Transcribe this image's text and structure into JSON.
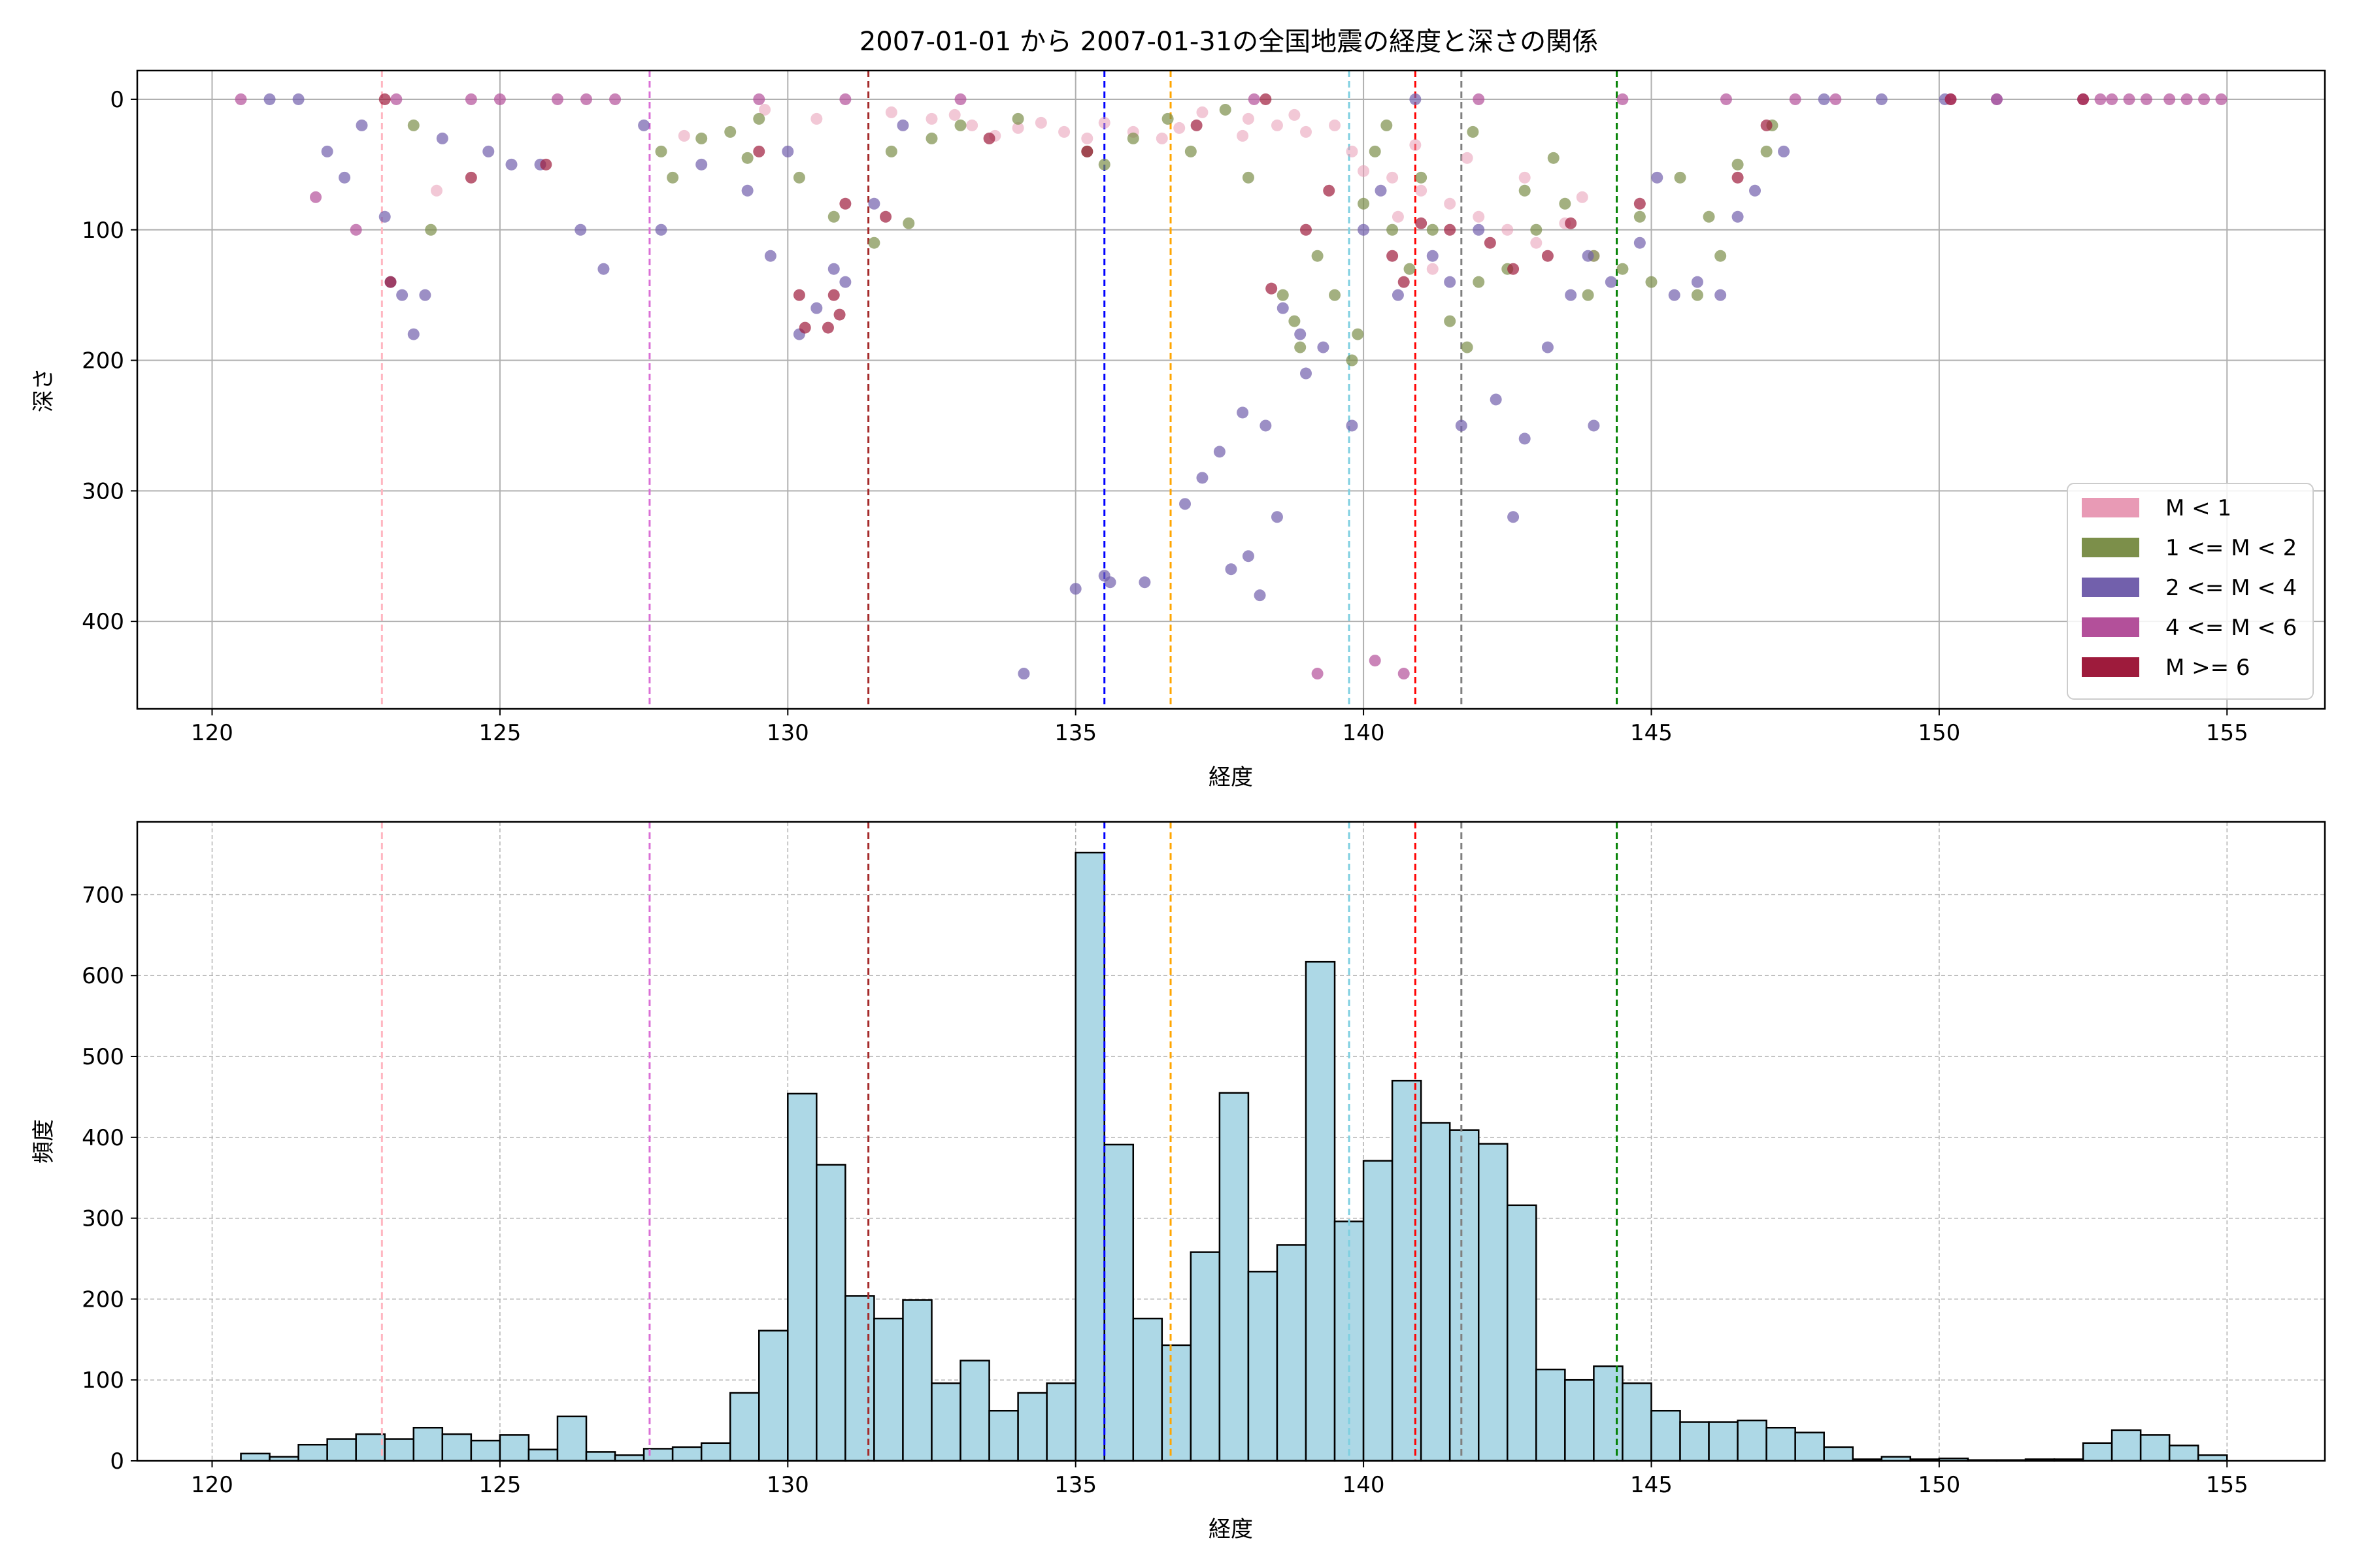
{
  "chart_data": [
    {
      "type": "scatter",
      "title": "2007-01-01 から 2007-01-31の全国地震の経度と深さの関係",
      "xlabel": "経度",
      "ylabel": "深さ",
      "xlim": [
        118.7,
        156.7
      ],
      "ylim": [
        467,
        -22
      ],
      "y_inverted": true,
      "xticks": [
        120,
        125,
        130,
        135,
        140,
        145,
        150,
        155
      ],
      "xtick_labels": [
        "120",
        "125",
        "130",
        "135",
        "140",
        "145",
        "150",
        "155"
      ],
      "yticks": [
        0,
        100,
        200,
        300,
        400
      ],
      "ytick_labels": [
        "0",
        "100",
        "200",
        "300",
        "400"
      ],
      "grid": true,
      "legend_position": "lower-right",
      "series": [
        {
          "name": "M < 1",
          "color": "#e89ab5",
          "points": [
            [
              131.8,
              10
            ],
            [
              132.5,
              15
            ],
            [
              133.2,
              20
            ],
            [
              134.0,
              22
            ],
            [
              134.8,
              25
            ],
            [
              135.5,
              18
            ],
            [
              136.0,
              25
            ],
            [
              136.5,
              30
            ],
            [
              137.2,
              10
            ],
            [
              138.0,
              15
            ],
            [
              138.5,
              20
            ],
            [
              139.0,
              25
            ],
            [
              139.5,
              20
            ],
            [
              140.0,
              55
            ],
            [
              140.5,
              60
            ],
            [
              141.0,
              70
            ],
            [
              141.5,
              80
            ],
            [
              142.0,
              90
            ],
            [
              142.5,
              100
            ],
            [
              143.0,
              110
            ],
            [
              143.5,
              95
            ],
            [
              144.0,
              120
            ],
            [
              141.2,
              130
            ],
            [
              140.6,
              90
            ],
            [
              139.8,
              40
            ],
            [
              133.6,
              28
            ],
            [
              132.9,
              12
            ],
            [
              135.2,
              30
            ],
            [
              136.8,
              22
            ],
            [
              138.8,
              12
            ],
            [
              123.9,
              70
            ],
            [
              128.2,
              28
            ],
            [
              130.5,
              15
            ],
            [
              129.6,
              8
            ],
            [
              142.8,
              60
            ],
            [
              143.8,
              75
            ],
            [
              141.8,
              45
            ],
            [
              140.9,
              35
            ],
            [
              137.9,
              28
            ],
            [
              134.4,
              18
            ]
          ]
        },
        {
          "name": "1 <= M < 2",
          "color": "#7c8f4a",
          "points": [
            [
              123.5,
              20
            ],
            [
              123.8,
              100
            ],
            [
              127.8,
              40
            ],
            [
              128.5,
              30
            ],
            [
              129.0,
              25
            ],
            [
              129.5,
              15
            ],
            [
              130.2,
              60
            ],
            [
              130.8,
              90
            ],
            [
              131.5,
              110
            ],
            [
              131.8,
              40
            ],
            [
              132.5,
              30
            ],
            [
              133.0,
              20
            ],
            [
              134.0,
              15
            ],
            [
              135.2,
              40
            ],
            [
              135.5,
              50
            ],
            [
              136.0,
              30
            ],
            [
              137.0,
              40
            ],
            [
              138.0,
              60
            ],
            [
              138.6,
              150
            ],
            [
              138.8,
              170
            ],
            [
              138.9,
              190
            ],
            [
              139.5,
              150
            ],
            [
              139.8,
              200
            ],
            [
              140.0,
              80
            ],
            [
              140.5,
              100
            ],
            [
              140.8,
              130
            ],
            [
              141.0,
              60
            ],
            [
              141.5,
              170
            ],
            [
              141.8,
              190
            ],
            [
              142.0,
              140
            ],
            [
              142.5,
              130
            ],
            [
              143.0,
              100
            ],
            [
              143.5,
              80
            ],
            [
              144.0,
              120
            ],
            [
              144.5,
              130
            ],
            [
              145.0,
              140
            ],
            [
              145.5,
              60
            ],
            [
              146.0,
              90
            ],
            [
              146.5,
              50
            ],
            [
              147.0,
              40
            ],
            [
              147.1,
              20
            ],
            [
              141.2,
              100
            ],
            [
              139.2,
              120
            ],
            [
              140.2,
              40
            ],
            [
              142.8,
              70
            ],
            [
              144.8,
              90
            ],
            [
              145.8,
              150
            ],
            [
              146.2,
              120
            ],
            [
              143.9,
              150
            ],
            [
              128.0,
              60
            ],
            [
              129.3,
              45
            ],
            [
              132.1,
              95
            ],
            [
              136.6,
              15
            ],
            [
              137.6,
              8
            ],
            [
              139.9,
              180
            ],
            [
              140.4,
              20
            ],
            [
              141.9,
              25
            ],
            [
              143.3,
              45
            ]
          ]
        },
        {
          "name": "2 <= M < 4",
          "color": "#7260ac",
          "points": [
            [
              121.0,
              0
            ],
            [
              121.5,
              0
            ],
            [
              122.0,
              40
            ],
            [
              122.3,
              60
            ],
            [
              122.6,
              20
            ],
            [
              123.0,
              90
            ],
            [
              123.1,
              140
            ],
            [
              123.3,
              150
            ],
            [
              123.5,
              180
            ],
            [
              123.7,
              150
            ],
            [
              124.0,
              30
            ],
            [
              124.8,
              40
            ],
            [
              125.2,
              50
            ],
            [
              125.7,
              50
            ],
            [
              126.4,
              100
            ],
            [
              126.8,
              130
            ],
            [
              127.5,
              20
            ],
            [
              127.8,
              100
            ],
            [
              128.5,
              50
            ],
            [
              129.3,
              70
            ],
            [
              129.7,
              120
            ],
            [
              130.0,
              40
            ],
            [
              130.2,
              180
            ],
            [
              130.5,
              160
            ],
            [
              130.8,
              130
            ],
            [
              131.0,
              140
            ],
            [
              131.5,
              80
            ],
            [
              132.0,
              20
            ],
            [
              134.1,
              440
            ],
            [
              135.0,
              375
            ],
            [
              135.5,
              365
            ],
            [
              135.6,
              370
            ],
            [
              136.2,
              370
            ],
            [
              136.9,
              310
            ],
            [
              137.2,
              290
            ],
            [
              137.5,
              270
            ],
            [
              137.7,
              360
            ],
            [
              137.9,
              240
            ],
            [
              138.0,
              350
            ],
            [
              138.2,
              380
            ],
            [
              138.3,
              250
            ],
            [
              138.5,
              320
            ],
            [
              138.6,
              160
            ],
            [
              138.9,
              180
            ],
            [
              139.0,
              210
            ],
            [
              139.3,
              190
            ],
            [
              139.8,
              250
            ],
            [
              140.0,
              100
            ],
            [
              140.3,
              70
            ],
            [
              140.6,
              150
            ],
            [
              141.2,
              120
            ],
            [
              141.5,
              140
            ],
            [
              141.7,
              250
            ],
            [
              142.3,
              230
            ],
            [
              142.6,
              320
            ],
            [
              142.8,
              260
            ],
            [
              143.2,
              190
            ],
            [
              143.6,
              150
            ],
            [
              144.0,
              250
            ],
            [
              144.3,
              140
            ],
            [
              144.8,
              110
            ],
            [
              145.4,
              150
            ],
            [
              145.8,
              140
            ],
            [
              146.2,
              150
            ],
            [
              146.5,
              90
            ],
            [
              146.8,
              70
            ],
            [
              147.3,
              40
            ],
            [
              148.0,
              0
            ],
            [
              149.0,
              0
            ],
            [
              150.1,
              0
            ],
            [
              151.0,
              0
            ],
            [
              140.9,
              0
            ],
            [
              142.0,
              100
            ],
            [
              143.9,
              120
            ],
            [
              145.1,
              60
            ]
          ]
        },
        {
          "name": "4 <= M < 6",
          "color": "#b3509a",
          "points": [
            [
              120.5,
              0
            ],
            [
              121.8,
              75
            ],
            [
              122.5,
              100
            ],
            [
              123.2,
              0
            ],
            [
              124.5,
              0
            ],
            [
              125.0,
              0
            ],
            [
              126.0,
              0
            ],
            [
              126.5,
              0
            ],
            [
              127.0,
              0
            ],
            [
              129.5,
              0
            ],
            [
              131.0,
              0
            ],
            [
              133.0,
              0
            ],
            [
              138.1,
              0
            ],
            [
              139.2,
              440
            ],
            [
              140.2,
              430
            ],
            [
              140.7,
              440
            ],
            [
              142.0,
              0
            ],
            [
              144.5,
              0
            ],
            [
              146.3,
              0
            ],
            [
              147.5,
              0
            ],
            [
              148.2,
              0
            ],
            [
              150.2,
              0
            ],
            [
              151.0,
              0
            ],
            [
              152.5,
              0
            ],
            [
              152.8,
              0
            ],
            [
              153.0,
              0
            ],
            [
              153.3,
              0
            ],
            [
              153.6,
              0
            ],
            [
              154.0,
              0
            ],
            [
              154.3,
              0
            ],
            [
              154.6,
              0
            ],
            [
              154.9,
              0
            ]
          ]
        },
        {
          "name": "M >= 6",
          "color": "#9e1b3c",
          "points": [
            [
              123.0,
              0
            ],
            [
              123.1,
              140
            ],
            [
              124.5,
              60
            ],
            [
              125.8,
              50
            ],
            [
              129.5,
              40
            ],
            [
              130.2,
              150
            ],
            [
              130.3,
              175
            ],
            [
              130.7,
              175
            ],
            [
              130.8,
              150
            ],
            [
              130.9,
              165
            ],
            [
              131.0,
              80
            ],
            [
              131.7,
              90
            ],
            [
              133.5,
              30
            ],
            [
              135.2,
              40
            ],
            [
              137.1,
              20
            ],
            [
              138.3,
              0
            ],
            [
              138.4,
              145
            ],
            [
              139.0,
              100
            ],
            [
              139.4,
              70
            ],
            [
              140.5,
              120
            ],
            [
              140.7,
              140
            ],
            [
              141.0,
              95
            ],
            [
              141.5,
              100
            ],
            [
              142.2,
              110
            ],
            [
              142.6,
              130
            ],
            [
              143.2,
              120
            ],
            [
              143.6,
              95
            ],
            [
              144.8,
              80
            ],
            [
              146.5,
              60
            ],
            [
              147.0,
              20
            ],
            [
              150.2,
              0
            ],
            [
              152.5,
              0
            ]
          ]
        }
      ],
      "reference_lines": [
        {
          "x": 122.95,
          "color": "#ffb6c1"
        },
        {
          "x": 127.6,
          "color": "#da70d6"
        },
        {
          "x": 131.4,
          "color": "#a52a2a"
        },
        {
          "x": 135.5,
          "color": "#0000ff"
        },
        {
          "x": 136.65,
          "color": "#ffa500"
        },
        {
          "x": 139.75,
          "color": "#7ecfe0"
        },
        {
          "x": 140.9,
          "color": "#ff0000"
        },
        {
          "x": 141.7,
          "color": "#808080"
        },
        {
          "x": 144.4,
          "color": "#008000"
        }
      ]
    },
    {
      "type": "bar",
      "title": "",
      "xlabel": "経度",
      "ylabel": "頻度",
      "xlim": [
        118.7,
        156.7
      ],
      "ylim": [
        0,
        790
      ],
      "xticks": [
        120,
        125,
        130,
        135,
        140,
        145,
        150,
        155
      ],
      "xtick_labels": [
        "120",
        "125",
        "130",
        "135",
        "140",
        "145",
        "150",
        "155"
      ],
      "yticks": [
        0,
        100,
        200,
        300,
        400,
        500,
        600,
        700
      ],
      "ytick_labels": [
        "0",
        "100",
        "200",
        "300",
        "400",
        "500",
        "600",
        "700"
      ],
      "grid": true,
      "bar_color": "#add8e6",
      "bar_edge_color": "#000000",
      "bin_start": 120.5,
      "bin_width": 0.5,
      "values": [
        9,
        5,
        20,
        27,
        33,
        27,
        41,
        33,
        25,
        32,
        14,
        55,
        11,
        7,
        15,
        17,
        22,
        84,
        161,
        454,
        366,
        204,
        176,
        199,
        96,
        124,
        62,
        84,
        96,
        752,
        391,
        176,
        143,
        258,
        455,
        234,
        267,
        617,
        296,
        371,
        470,
        418,
        409,
        392,
        316,
        113,
        100,
        117,
        96,
        62,
        48,
        48,
        50,
        41,
        35,
        17,
        2,
        5,
        2,
        3,
        1,
        1,
        2,
        2,
        22,
        38,
        32,
        19,
        7
      ]
    }
  ]
}
